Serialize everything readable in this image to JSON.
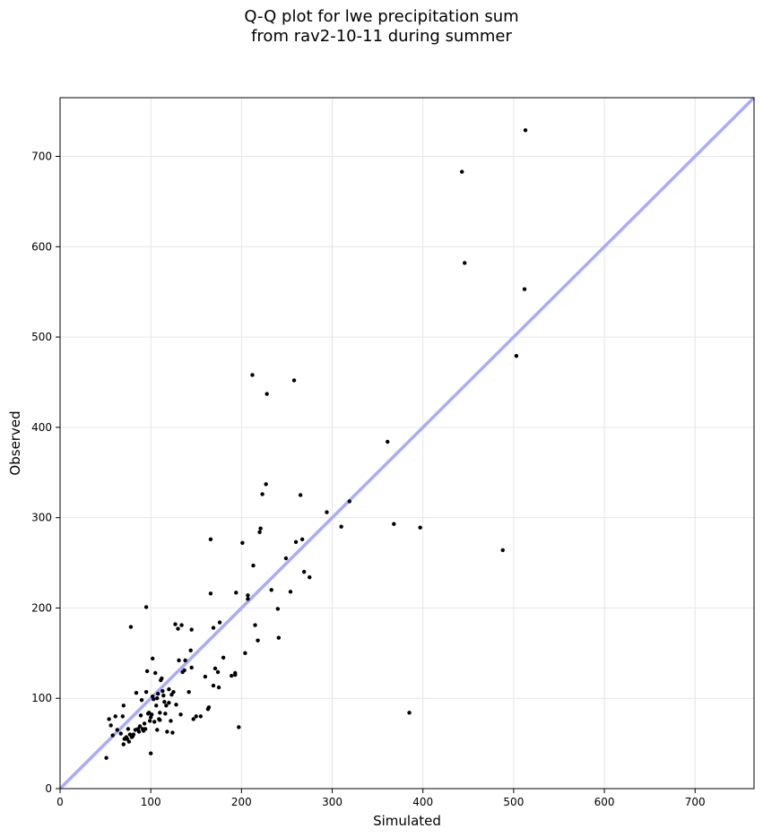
{
  "chart_data": {
    "type": "scatter",
    "title_lines": [
      "Q-Q plot for lwe precipitation sum",
      "from rav2-10-11 during summer"
    ],
    "xlabel": "Simulated",
    "ylabel": "Observed",
    "xlim": [
      0,
      765
    ],
    "ylim": [
      0,
      765
    ],
    "xticks": [
      0,
      100,
      200,
      300,
      400,
      500,
      600,
      700
    ],
    "yticks": [
      0,
      100,
      200,
      300,
      400,
      500,
      600,
      700
    ],
    "grid": true,
    "reference_line": {
      "from": [
        0,
        0
      ],
      "to": [
        765,
        765
      ],
      "color": "#aaaaff"
    },
    "point_color": "#000000",
    "points": [
      [
        51,
        34
      ],
      [
        54,
        77
      ],
      [
        56,
        70
      ],
      [
        58,
        59
      ],
      [
        61,
        80
      ],
      [
        63,
        65
      ],
      [
        67,
        61
      ],
      [
        69,
        80
      ],
      [
        70,
        92
      ],
      [
        70,
        49
      ],
      [
        71,
        55
      ],
      [
        73,
        57
      ],
      [
        74,
        55
      ],
      [
        75,
        66
      ],
      [
        76,
        52
      ],
      [
        77,
        60
      ],
      [
        78,
        179
      ],
      [
        79,
        57
      ],
      [
        80,
        58
      ],
      [
        81,
        60
      ],
      [
        83,
        65
      ],
      [
        84,
        106
      ],
      [
        86,
        66
      ],
      [
        87,
        63
      ],
      [
        88,
        69
      ],
      [
        89,
        81
      ],
      [
        90,
        98
      ],
      [
        91,
        66
      ],
      [
        92,
        64
      ],
      [
        93,
        72
      ],
      [
        94,
        66
      ],
      [
        95,
        107
      ],
      [
        95,
        201
      ],
      [
        96,
        130
      ],
      [
        97,
        83
      ],
      [
        98,
        84
      ],
      [
        99,
        75
      ],
      [
        100,
        79
      ],
      [
        100,
        39
      ],
      [
        101,
        82
      ],
      [
        102,
        102
      ],
      [
        102,
        144
      ],
      [
        103,
        99
      ],
      [
        104,
        74
      ],
      [
        105,
        128
      ],
      [
        106,
        92
      ],
      [
        107,
        100
      ],
      [
        107,
        65
      ],
      [
        108,
        105
      ],
      [
        109,
        77
      ],
      [
        110,
        76
      ],
      [
        110,
        84
      ],
      [
        111,
        120
      ],
      [
        112,
        122
      ],
      [
        113,
        108
      ],
      [
        114,
        103
      ],
      [
        115,
        96
      ],
      [
        116,
        83
      ],
      [
        117,
        92
      ],
      [
        118,
        63
      ],
      [
        120,
        110
      ],
      [
        120,
        95
      ],
      [
        122,
        75
      ],
      [
        123,
        104
      ],
      [
        124,
        62
      ],
      [
        125,
        107
      ],
      [
        127,
        182
      ],
      [
        128,
        93
      ],
      [
        130,
        177
      ],
      [
        131,
        142
      ],
      [
        133,
        82
      ],
      [
        134,
        181
      ],
      [
        135,
        129
      ],
      [
        137,
        131
      ],
      [
        138,
        142
      ],
      [
        142,
        107
      ],
      [
        144,
        153
      ],
      [
        145,
        134
      ],
      [
        145,
        176
      ],
      [
        147,
        77
      ],
      [
        150,
        80
      ],
      [
        155,
        80
      ],
      [
        160,
        124
      ],
      [
        163,
        88
      ],
      [
        164,
        90
      ],
      [
        166,
        216
      ],
      [
        166,
        276
      ],
      [
        169,
        178
      ],
      [
        169,
        114
      ],
      [
        171,
        133
      ],
      [
        174,
        129
      ],
      [
        175,
        112
      ],
      [
        176,
        184
      ],
      [
        180,
        145
      ],
      [
        189,
        125
      ],
      [
        193,
        126
      ],
      [
        193,
        128
      ],
      [
        194,
        217
      ],
      [
        197,
        68
      ],
      [
        201,
        272
      ],
      [
        204,
        150
      ],
      [
        207,
        210
      ],
      [
        207,
        214
      ],
      [
        212,
        458
      ],
      [
        213,
        247
      ],
      [
        215,
        181
      ],
      [
        218,
        164
      ],
      [
        220,
        284
      ],
      [
        221,
        288
      ],
      [
        223,
        326
      ],
      [
        227,
        337
      ],
      [
        228,
        437
      ],
      [
        233,
        220
      ],
      [
        240,
        199
      ],
      [
        241,
        167
      ],
      [
        249,
        255
      ],
      [
        254,
        218
      ],
      [
        258,
        452
      ],
      [
        260,
        273
      ],
      [
        265,
        325
      ],
      [
        267,
        276
      ],
      [
        269,
        240
      ],
      [
        275,
        234
      ],
      [
        294,
        306
      ],
      [
        310,
        290
      ],
      [
        319,
        318
      ],
      [
        361,
        384
      ],
      [
        368,
        293
      ],
      [
        385,
        84
      ],
      [
        397,
        289
      ],
      [
        443,
        683
      ],
      [
        446,
        582
      ],
      [
        488,
        264
      ],
      [
        503,
        479
      ],
      [
        512,
        553
      ],
      [
        513,
        729
      ]
    ]
  }
}
